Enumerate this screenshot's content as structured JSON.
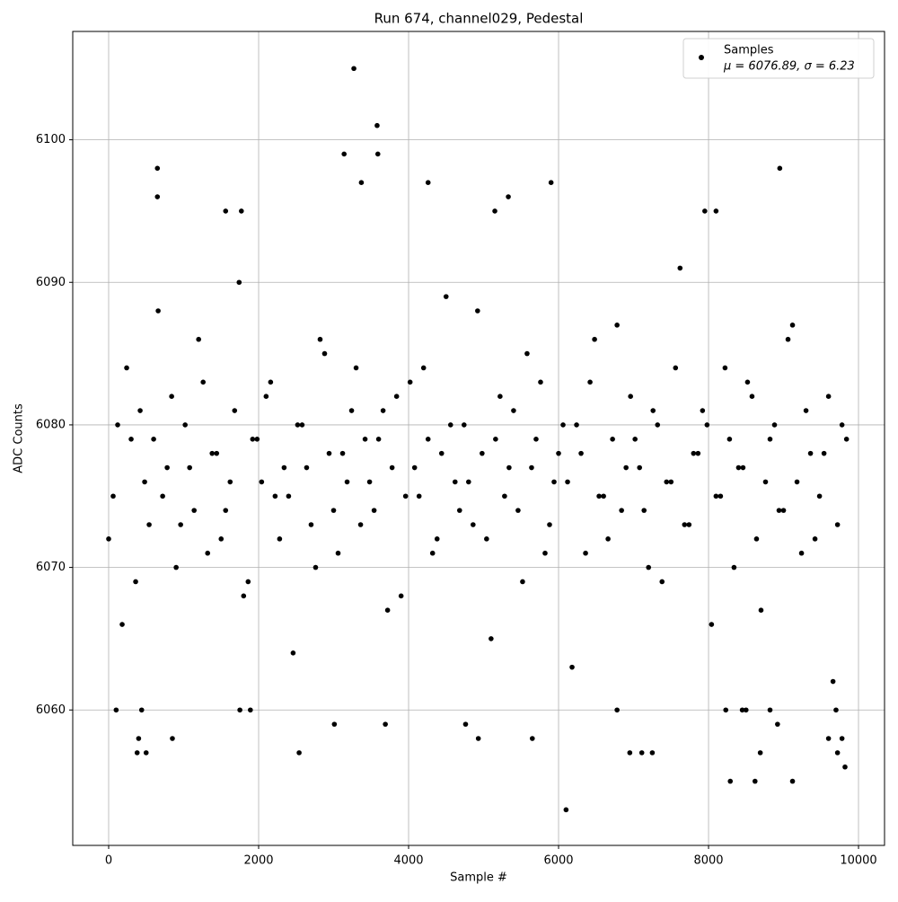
{
  "chart_data": {
    "type": "scatter",
    "title": "Run 674, channel029, Pedestal",
    "x_label": "Sample #",
    "y_label": "ADC Counts",
    "xlim": [
      -479,
      10347
    ],
    "ylim": [
      6050.5,
      6107.6
    ],
    "xticks": [
      0,
      2000,
      4000,
      6000,
      8000,
      10000
    ],
    "yticks": [
      6060,
      6070,
      6080,
      6090,
      6100
    ],
    "grid": true,
    "legend": "upper right",
    "legend_note": "μ = 6076.89, σ = 6.23",
    "series": [
      {
        "name": "Samples",
        "color": "#000000",
        "x": [
          0,
          120,
          240,
          360,
          480,
          600,
          720,
          840,
          960,
          1080,
          1200,
          1320,
          1440,
          1560,
          1680,
          1800,
          1920,
          2040,
          2160,
          2280,
          2400,
          2520,
          2640,
          2760,
          2880,
          3000,
          3120,
          3240,
          3360,
          3480,
          3600,
          3720,
          3840,
          3960,
          4080,
          4200,
          4320,
          4440,
          4560,
          4680,
          4800,
          4920,
          5040,
          5160,
          5280,
          5400,
          5520,
          5640,
          5760,
          5880,
          6000,
          6120,
          6240,
          6360,
          6480,
          6600,
          6720,
          6840,
          6960,
          7080,
          7200,
          7320,
          7440,
          7560,
          7680,
          7800,
          7920,
          8040,
          8160,
          8280,
          8400,
          8520,
          8640,
          8760,
          8880,
          9000,
          9120,
          9240,
          9360,
          9480,
          9600,
          9720,
          9840,
          60,
          180,
          300,
          420,
          540,
          660,
          780,
          900,
          1020,
          1140,
          1260,
          1380,
          1500,
          1620,
          1740,
          1860,
          1980,
          2100,
          2220,
          2340,
          2460,
          2580,
          2700,
          2820,
          2940,
          3060,
          3180,
          3300,
          3420,
          3540,
          3660,
          3780,
          3900,
          4020,
          4140,
          4260,
          4380,
          4500,
          4620,
          4740,
          4860,
          4980,
          5100,
          5220,
          5340,
          5460,
          5580,
          5700,
          5820,
          5940,
          6060,
          6180,
          6300,
          6420,
          6540,
          6660,
          6780,
          6900,
          7020,
          7140,
          7260,
          7380,
          7500,
          7620,
          7740,
          7860,
          7980,
          8100,
          8220,
          8340,
          8460,
          8580,
          8700,
          8820,
          8940,
          9060,
          9180,
          9300,
          9420,
          9540,
          9660,
          9780,
          3270,
          3580,
          3590,
          3140,
          650,
          8950,
          650,
          3370,
          4260,
          5900,
          5330,
          1560,
          1770,
          5150,
          7950,
          8100,
          6100,
          8290,
          8620,
          9120,
          9820,
          380,
          500,
          2540,
          6950,
          7110,
          7250,
          8690,
          9720,
          5650,
          850,
          4930,
          9600,
          9780,
          400,
          3010,
          3690,
          4760,
          8920,
          100,
          440,
          1750,
          1890,
          6780,
          8230,
          8450,
          8500,
          8820,
          9700
        ],
        "values": [
          6072,
          6080,
          6084,
          6069,
          6076,
          6079,
          6075,
          6082,
          6073,
          6077,
          6086,
          6071,
          6078,
          6074,
          6081,
          6068,
          6079,
          6076,
          6083,
          6072,
          6075,
          6080,
          6077,
          6070,
          6085,
          6074,
          6078,
          6081,
          6073,
          6076,
          6079,
          6067,
          6082,
          6075,
          6077,
          6084,
          6071,
          6078,
          6080,
          6074,
          6076,
          6088,
          6072,
          6079,
          6075,
          6081,
          6069,
          6077,
          6083,
          6073,
          6078,
          6076,
          6080,
          6071,
          6086,
          6075,
          6079,
          6074,
          6082,
          6077,
          6070,
          6080,
          6076,
          6084,
          6073,
          6078,
          6081,
          6066,
          6075,
          6079,
          6077,
          6083,
          6072,
          6076,
          6080,
          6074,
          6087,
          6071,
          6078,
          6075,
          6082,
          6073,
          6079,
          6075,
          6066,
          6079,
          6081,
          6073,
          6088,
          6077,
          6070,
          6080,
          6074,
          6083,
          6078,
          6072,
          6076,
          6090,
          6069,
          6079,
          6082,
          6075,
          6077,
          6064,
          6080,
          6073,
          6086,
          6078,
          6071,
          6076,
          6084,
          6079,
          6074,
          6081,
          6077,
          6068,
          6083,
          6075,
          6079,
          6072,
          6089,
          6076,
          6080,
          6073,
          6078,
          6065,
          6082,
          6077,
          6074,
          6085,
          6079,
          6071,
          6076,
          6080,
          6063,
          6078,
          6083,
          6075,
          6072,
          6087,
          6077,
          6079,
          6074,
          6081,
          6069,
          6076,
          6091,
          6073,
          6078,
          6080,
          6075,
          6084,
          6070,
          6077,
          6082,
          6067,
          6079,
          6074,
          6086,
          6076,
          6081,
          6072,
          6078,
          6062,
          6080,
          6105,
          6101,
          6099,
          6099,
          6098,
          6098,
          6096,
          6097,
          6097,
          6097,
          6096,
          6095,
          6095,
          6095,
          6095,
          6095,
          6053,
          6055,
          6055,
          6055,
          6056,
          6057,
          6057,
          6057,
          6057,
          6057,
          6057,
          6057,
          6057,
          6058,
          6058,
          6058,
          6058,
          6058,
          6058,
          6059,
          6059,
          6059,
          6059,
          6060,
          6060,
          6060,
          6060,
          6060,
          6060,
          6060,
          6060,
          6060,
          6060
        ]
      }
    ]
  }
}
